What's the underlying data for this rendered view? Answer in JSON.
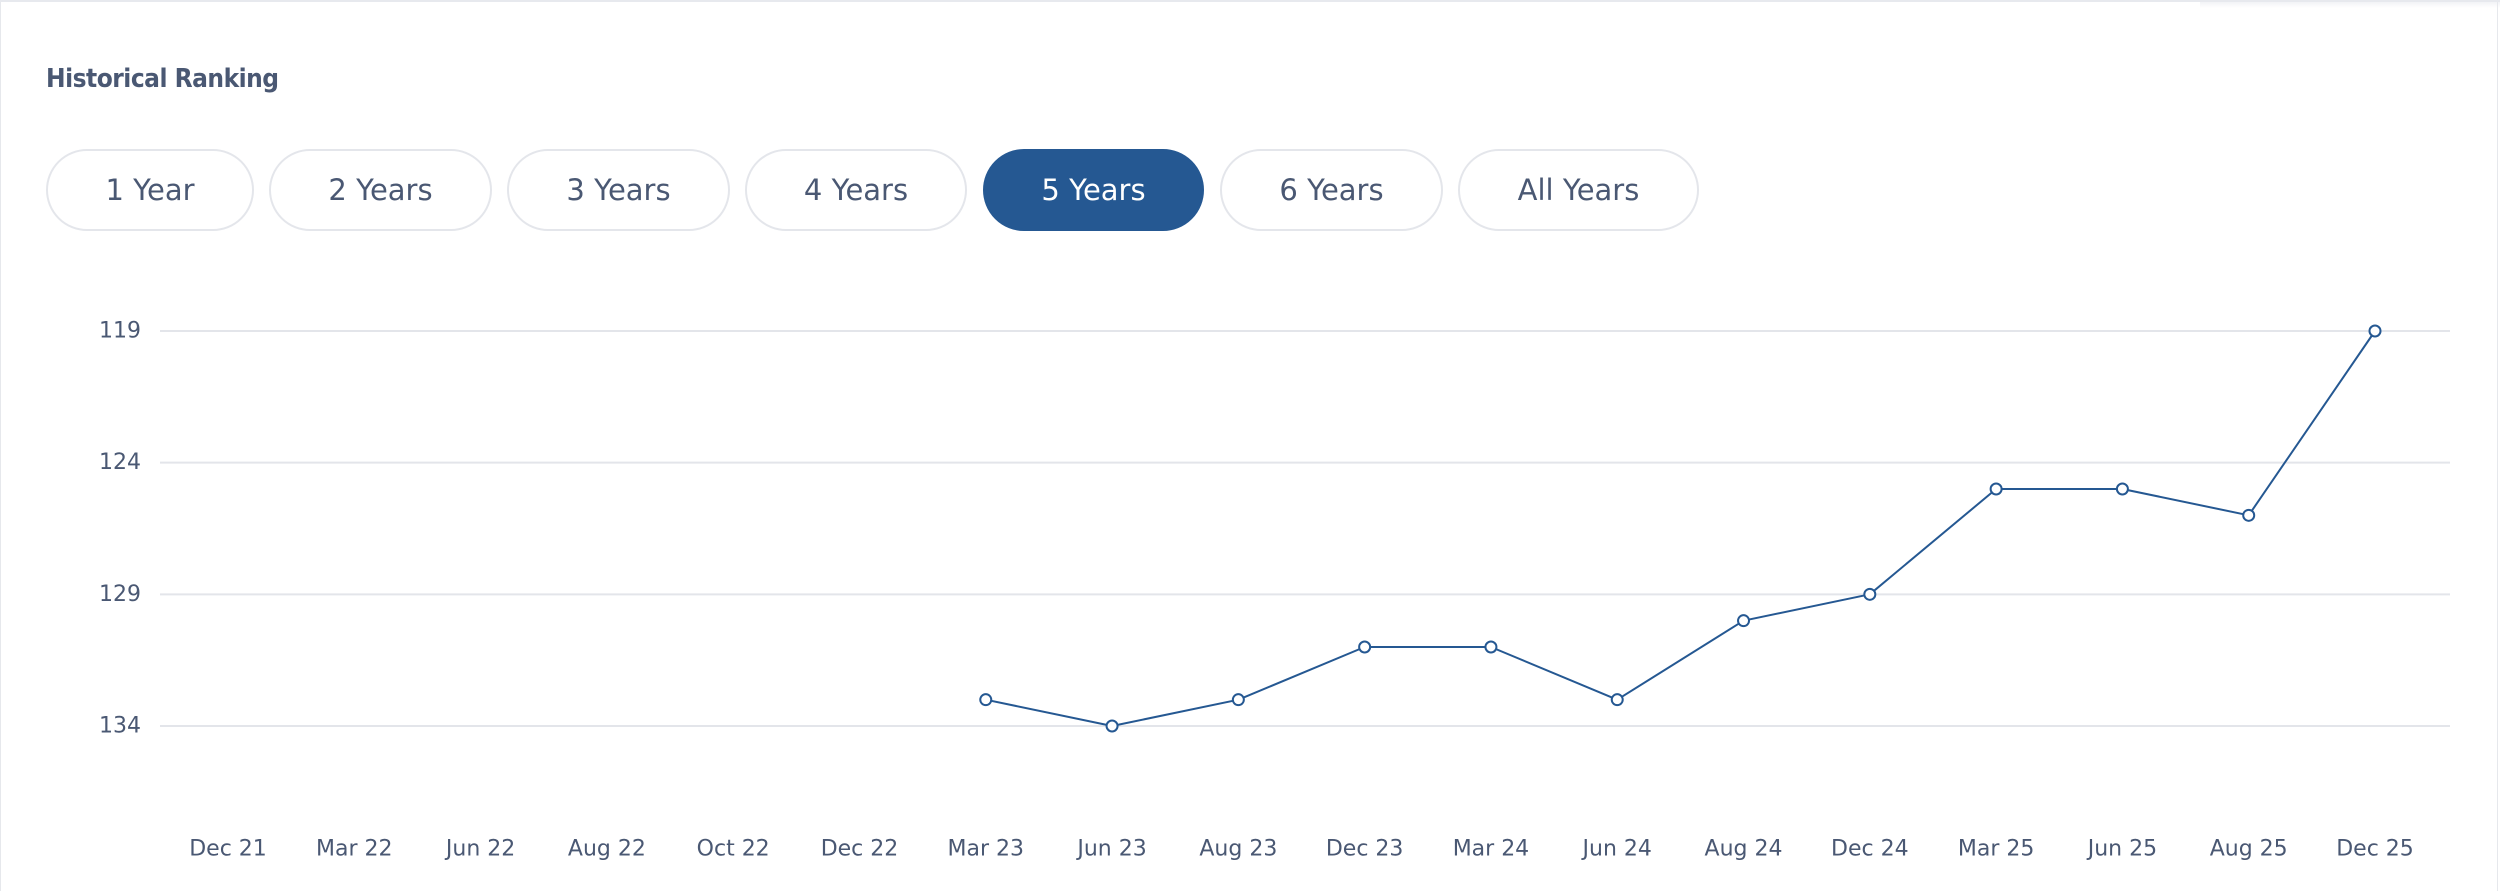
{
  "section": {
    "title": "Historical Ranking"
  },
  "range_tabs": [
    {
      "label": "1 Year",
      "active": false
    },
    {
      "label": "2 Years",
      "active": false
    },
    {
      "label": "3 Years",
      "active": false
    },
    {
      "label": "4 Years",
      "active": false
    },
    {
      "label": "5 Years",
      "active": true
    },
    {
      "label": "6 Years",
      "active": false
    },
    {
      "label": "All Years",
      "active": false
    }
  ],
  "colors": {
    "line": "#255892",
    "marker_fill": "#ffffff",
    "gridline": "#e3e5ea",
    "active_tab": "#255892",
    "text": "#4a5873"
  },
  "chart_data": {
    "type": "line",
    "title": "",
    "xlabel": "",
    "ylabel": "",
    "y_inverted": true,
    "ylim": [
      134,
      119
    ],
    "y_ticks": [
      119,
      124,
      129,
      134
    ],
    "grid": true,
    "x_categories": [
      "Dec 21",
      "Mar 22",
      "Jun 22",
      "Aug 22",
      "Oct 22",
      "Dec 22",
      "Mar 23",
      "Jun 23",
      "Aug 23",
      "Dec 23",
      "Mar 24",
      "Jun 24",
      "Aug 24",
      "Dec 24",
      "Mar 25",
      "Jun 25",
      "Aug 25",
      "Dec 25"
    ],
    "series": [
      {
        "values": [
          null,
          null,
          null,
          null,
          null,
          null,
          133,
          134,
          133,
          131,
          131,
          133,
          130,
          129,
          125,
          125,
          126,
          119
        ]
      }
    ]
  }
}
